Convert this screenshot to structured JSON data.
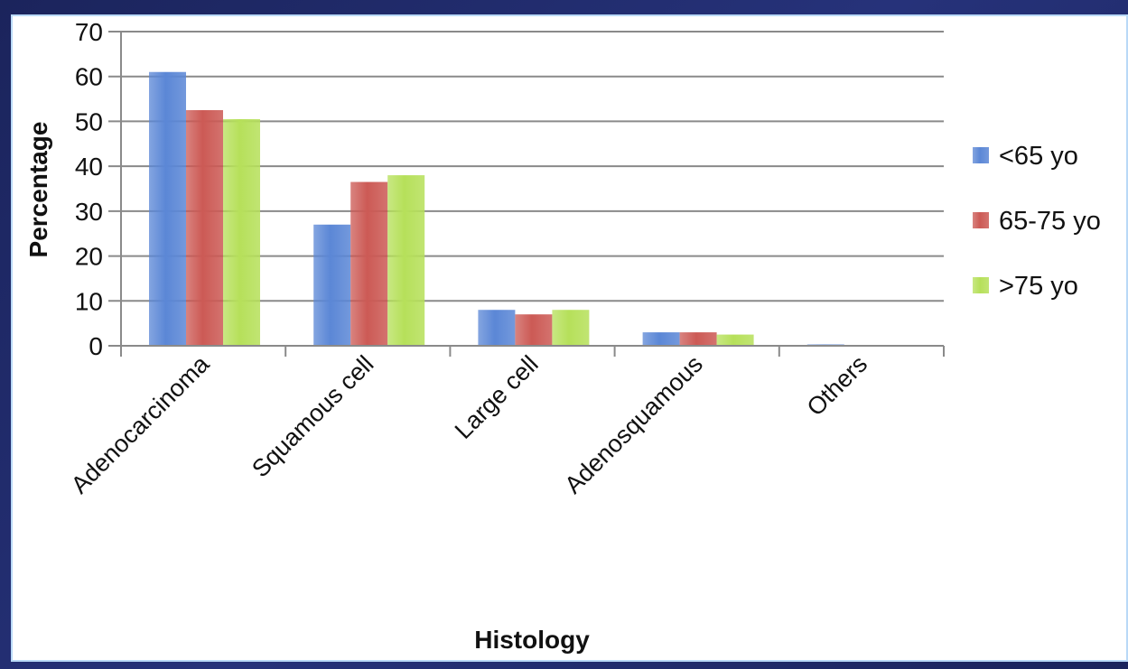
{
  "chart_data": {
    "type": "bar",
    "title": "",
    "xlabel": "Histology",
    "ylabel": "Percentage",
    "ylim": [
      0,
      70
    ],
    "yticks": [
      0,
      10,
      20,
      30,
      40,
      50,
      60,
      70
    ],
    "grid": true,
    "legend_position": "right",
    "categories": [
      "Adenocarcinoma",
      "Squamous cell",
      "Large cell",
      "Adenosquamous",
      "Others"
    ],
    "series": [
      {
        "name": "<65 yo",
        "color": "#5b87d6",
        "values": [
          61,
          27,
          8,
          3,
          0.3
        ]
      },
      {
        "name": "65-75 yo",
        "color": "#cc5a55",
        "values": [
          52.5,
          36.5,
          7,
          3,
          0
        ]
      },
      {
        "name": ">75 yo",
        "color": "#b6e05a",
        "values": [
          50.5,
          38,
          8,
          2.5,
          0
        ]
      }
    ]
  }
}
